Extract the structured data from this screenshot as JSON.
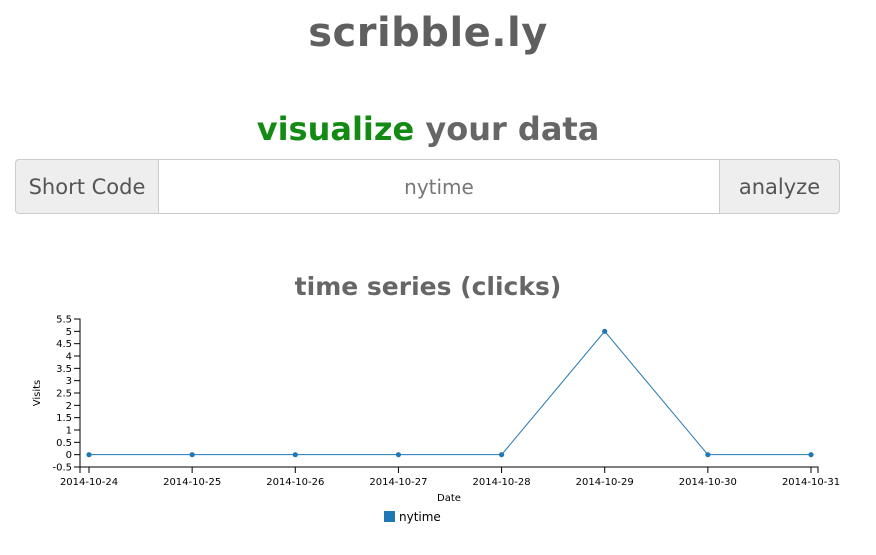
{
  "header": {
    "brand": "scribble.ly"
  },
  "tagline": {
    "accent": "visualize",
    "rest": " your data"
  },
  "form": {
    "prefix_label": "Short Code",
    "input_value": "nytime",
    "submit_label": "analyze"
  },
  "chart_title": "time series (clicks)",
  "colors": {
    "accent": "#138a13",
    "series": "#1f77b4"
  },
  "chart_data": {
    "type": "line",
    "x": [
      "2014-10-24",
      "2014-10-25",
      "2014-10-26",
      "2014-10-27",
      "2014-10-28",
      "2014-10-29",
      "2014-10-30",
      "2014-10-31"
    ],
    "series": [
      {
        "name": "nytime",
        "values": [
          0,
          0,
          0,
          0,
          0,
          5,
          0,
          0
        ]
      }
    ],
    "xlabel": "Date",
    "ylabel": "Visits",
    "ylim": [
      -0.5,
      5.5
    ],
    "yticks": [
      "-0.5",
      "0",
      "0.5",
      "1",
      "1.5",
      "2",
      "2.5",
      "3",
      "3.5",
      "4",
      "4.5",
      "5",
      "5.5"
    ],
    "grid": false,
    "legend": "bottom-center"
  }
}
